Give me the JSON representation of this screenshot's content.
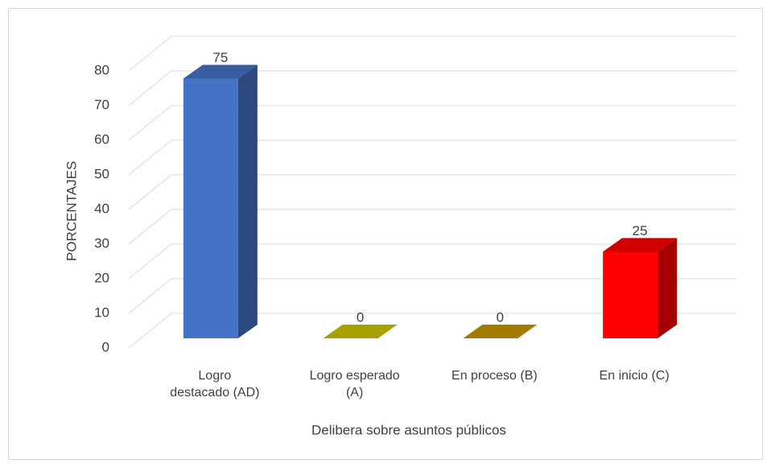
{
  "chart_data": {
    "type": "bar3d",
    "x_label": "Delibera sobre asuntos públicos",
    "y_label": "PORCENTAJES",
    "categories": [
      "Logro destacado (AD)",
      "Logro esperado (A)",
      "En proceso (B)",
      "En inicio (C)"
    ],
    "values": [
      75,
      0,
      0,
      25
    ],
    "colors": [
      "#4472c4",
      "#c8c400",
      "#c89600",
      "#ff0000"
    ],
    "ylim": [
      0,
      80
    ],
    "yticks": [
      0,
      10,
      20,
      30,
      40,
      50,
      60,
      70,
      80
    ],
    "grid": true
  }
}
